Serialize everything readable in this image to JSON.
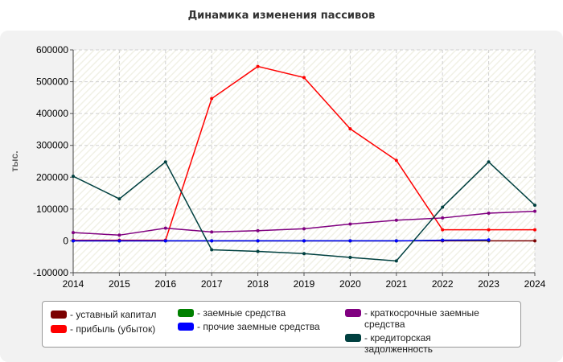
{
  "chart_data": {
    "type": "line",
    "title": "Динамика изменения пассивов",
    "ylabel": "тыс.",
    "xlabel": "",
    "x": [
      2014,
      2015,
      2016,
      2017,
      2018,
      2019,
      2020,
      2021,
      2022,
      2023,
      2024
    ],
    "ylim": [
      -100000,
      600000
    ],
    "yticks": [
      -100000,
      0,
      100000,
      200000,
      300000,
      400000,
      500000,
      600000
    ],
    "grid": true,
    "legend_position": "bottom",
    "series": [
      {
        "name": "уставный капитал",
        "color": "#7b0000",
        "values": [
          0,
          0,
          0,
          0,
          0,
          0,
          0,
          0,
          0,
          0,
          0
        ]
      },
      {
        "name": "прибыль (убыток)",
        "color": "#ff0000",
        "values": [
          2000,
          2000,
          2000,
          447000,
          548000,
          513000,
          352000,
          253000,
          35000,
          35000,
          35000
        ]
      },
      {
        "name": "заемные средства",
        "color": "#008000",
        "values": [
          0,
          0,
          0,
          0,
          0,
          0,
          0,
          0,
          2000,
          2000,
          null
        ]
      },
      {
        "name": "прочие заемные средства",
        "color": "#0000ff",
        "values": [
          0,
          0,
          0,
          0,
          0,
          0,
          0,
          0,
          2000,
          3000,
          null
        ]
      },
      {
        "name": "краткосрочные заемные средства",
        "color": "#800080",
        "values": [
          26000,
          18000,
          40000,
          28000,
          32000,
          38000,
          53000,
          65000,
          72000,
          87000,
          93000
        ]
      },
      {
        "name": "кредиторская задолженность",
        "color": "#004040",
        "values": [
          203000,
          132000,
          248000,
          -28000,
          -33000,
          -40000,
          -52000,
          -63000,
          106000,
          248000,
          112000
        ]
      }
    ]
  }
}
